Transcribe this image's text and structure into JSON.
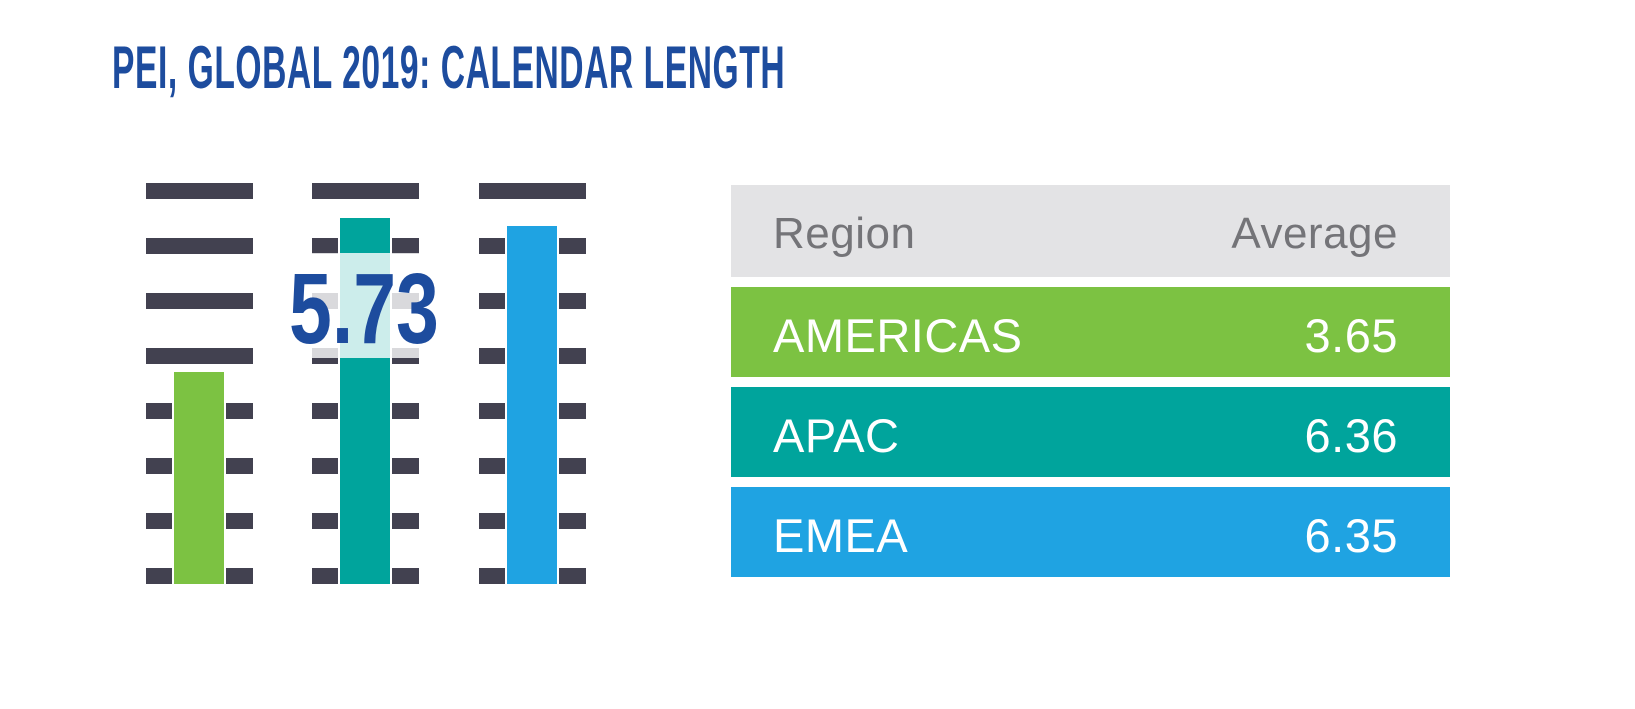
{
  "title": "PEI, GLOBAL 2019: CALENDAR LENGTH",
  "chart": {
    "highlight_value": "5.73",
    "columns": [
      "AMERICAS",
      "APAC",
      "EMEA"
    ],
    "rungs_per_column": 8
  },
  "table": {
    "headers": {
      "region": "Region",
      "average": "Average"
    },
    "rows": [
      {
        "region": "AMERICAS",
        "average": "3.65"
      },
      {
        "region": "APAC",
        "average": "6.36"
      },
      {
        "region": "EMEA",
        "average": "6.35"
      }
    ]
  },
  "colors": {
    "title_blue": "#1d4c9e",
    "rung_dark": "#424150",
    "americas_green": "#7cc242",
    "apac_teal": "#00a49c",
    "emea_blue": "#1fa3e2",
    "header_gray_bg": "#e3e3e5",
    "header_gray_text": "#747478",
    "background": "#ffffff"
  },
  "chart_data": {
    "type": "bar",
    "style": "pictogram-ladder-columns",
    "title": "PEI, GLOBAL 2019: CALENDAR LENGTH",
    "categories": [
      "AMERICAS",
      "APAC",
      "EMEA"
    ],
    "values": [
      3.65,
      6.36,
      6.35
    ],
    "series_label": "Average",
    "annotations": [
      {
        "text": "5.73",
        "note": "large overlaid value centered on APAC column"
      }
    ],
    "xlabel": "",
    "ylabel": "",
    "ylim": [
      0,
      7
    ],
    "grid": false,
    "legend": false,
    "bar_colors": [
      "#7cc242",
      "#00a49c",
      "#1fa3e2"
    ]
  }
}
